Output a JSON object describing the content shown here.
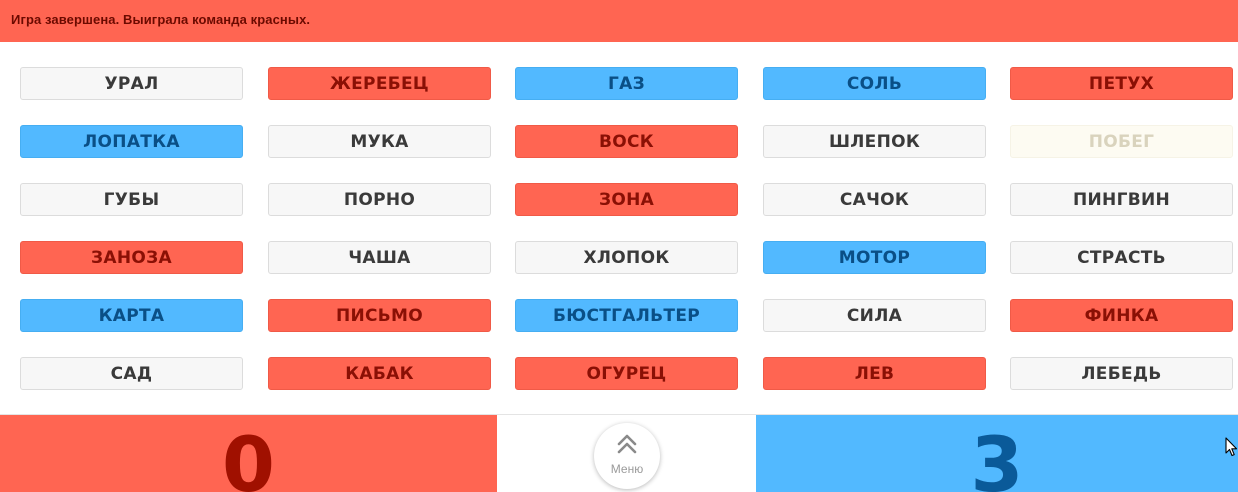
{
  "status": {
    "message": "Игра завершена. Выиграла команда красных."
  },
  "colors": {
    "red": "#ff6552",
    "blue": "#52b9ff",
    "neutral": "#f7f7f7",
    "assassin": "#fdfbf2"
  },
  "board": {
    "rows": [
      [
        {
          "word": "УРАЛ",
          "team": "neutral"
        },
        {
          "word": "ЖЕРЕБЕЦ",
          "team": "red"
        },
        {
          "word": "ГАЗ",
          "team": "blue"
        },
        {
          "word": "СОЛЬ",
          "team": "blue"
        },
        {
          "word": "ПЕТУХ",
          "team": "red"
        }
      ],
      [
        {
          "word": "ЛОПАТКА",
          "team": "blue"
        },
        {
          "word": "МУКА",
          "team": "neutral"
        },
        {
          "word": "ВОСК",
          "team": "red"
        },
        {
          "word": "ШЛЕПОК",
          "team": "neutral"
        },
        {
          "word": "ПОБЕГ",
          "team": "assassin"
        }
      ],
      [
        {
          "word": "ГУБЫ",
          "team": "neutral"
        },
        {
          "word": "ПОРНО",
          "team": "neutral"
        },
        {
          "word": "ЗОНА",
          "team": "red"
        },
        {
          "word": "САЧОК",
          "team": "neutral"
        },
        {
          "word": "ПИНГВИН",
          "team": "neutral"
        }
      ],
      [
        {
          "word": "ЗАНОЗА",
          "team": "red"
        },
        {
          "word": "ЧАША",
          "team": "neutral"
        },
        {
          "word": "ХЛОПОК",
          "team": "neutral"
        },
        {
          "word": "МОТОР",
          "team": "blue"
        },
        {
          "word": "СТРАСТЬ",
          "team": "neutral"
        }
      ],
      [
        {
          "word": "КАРТА",
          "team": "blue"
        },
        {
          "word": "ПИСЬМО",
          "team": "red"
        },
        {
          "word": "БЮСТГАЛЬТЕР",
          "team": "blue"
        },
        {
          "word": "СИЛА",
          "team": "neutral"
        },
        {
          "word": "ФИНКА",
          "team": "red"
        }
      ],
      [
        {
          "word": "САД",
          "team": "neutral"
        },
        {
          "word": "КАБАК",
          "team": "red"
        },
        {
          "word": "ОГУРЕЦ",
          "team": "red"
        },
        {
          "word": "ЛЕВ",
          "team": "red"
        },
        {
          "word": "ЛЕБЕДЬ",
          "team": "neutral"
        }
      ]
    ]
  },
  "scores": {
    "red": "0",
    "blue": "3"
  },
  "menu": {
    "label": "Меню",
    "icon": "double-chevron-up-icon"
  },
  "cursor": {
    "icon": "mouse-pointer-icon"
  }
}
